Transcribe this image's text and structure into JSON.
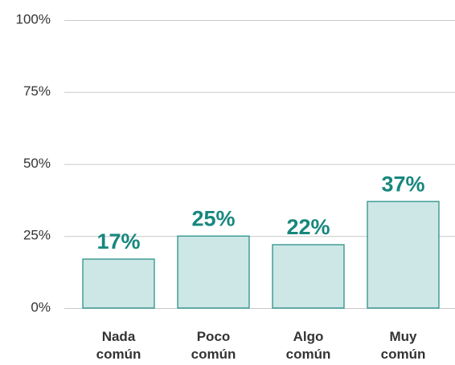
{
  "chart_data": {
    "type": "bar",
    "categories": [
      "Nada común",
      "Poco común",
      "Algo común",
      "Muy común"
    ],
    "values": [
      17,
      25,
      22,
      37
    ],
    "value_labels": [
      "17%",
      "25%",
      "22%",
      "37%"
    ],
    "color": "#cde6e6",
    "edge_color": "#1a8a80",
    "label_color": "#17877d",
    "ylim": [
      0,
      100
    ],
    "yticks": [
      {
        "value": 0,
        "label": "0%"
      },
      {
        "value": 25,
        "label": "25%"
      },
      {
        "value": 50,
        "label": "50%"
      },
      {
        "value": 75,
        "label": "75%"
      },
      {
        "value": 100,
        "label": "100%"
      }
    ],
    "grid": true
  }
}
